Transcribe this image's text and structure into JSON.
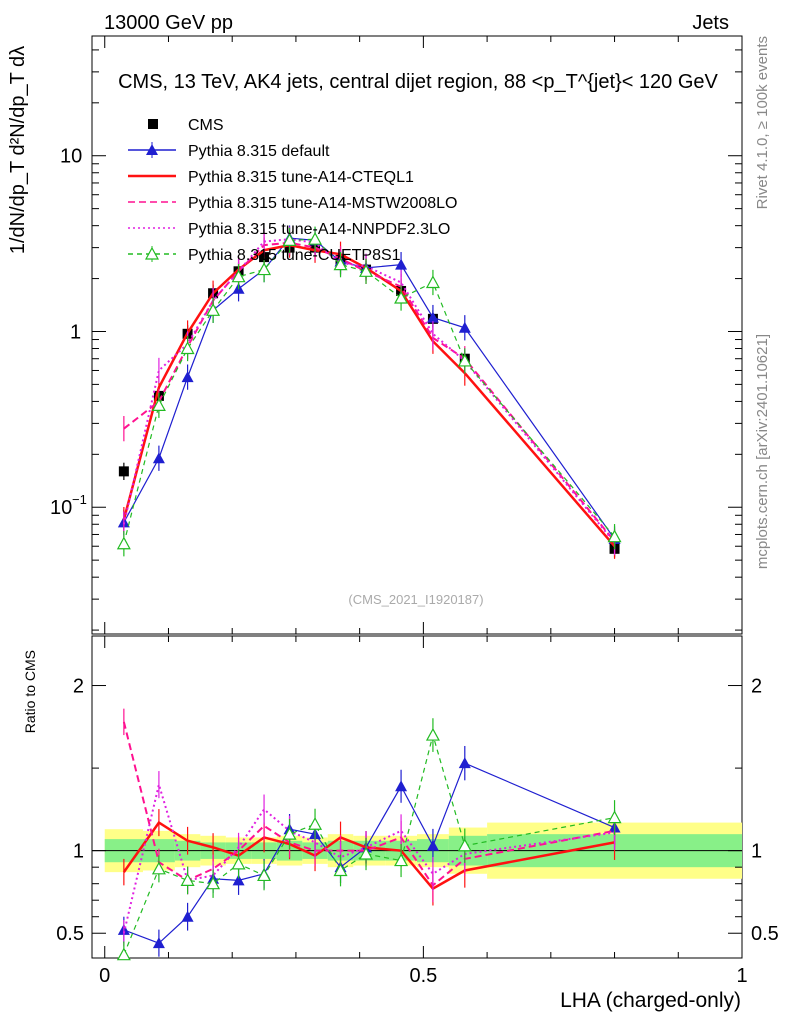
{
  "header": {
    "left": "13000 GeV pp",
    "right": "Jets"
  },
  "side_labels": {
    "rivet": "Rivet 4.1.0, ≥ 100k events",
    "mcplots": "mcplots.cern.ch [arXiv:2401.10621]"
  },
  "chart_data": {
    "type": "line",
    "title": "CMS, 13 TeV, AK4 jets, central dijet region, 88 <p_T^{jet}< 120 GeV",
    "watermark": "(CMS_2021_I1920187)",
    "xlabel": "LHA (charged-only)",
    "ylabel": "1/dN/dp_T  d²N/dp_T dλ",
    "ratio_ylabel": "Ratio to CMS",
    "xlim": [
      -0.02,
      1.0
    ],
    "ylim_log": [
      0.019,
      48
    ],
    "ratio_ylim": [
      0.35,
      2.3
    ],
    "x_ticks": [
      "0",
      "0.5",
      "1"
    ],
    "y_ticks": [
      "10^-1",
      "1",
      "10"
    ],
    "ratio_ticks": [
      "0.5",
      "1",
      "2"
    ],
    "x": [
      0.03,
      0.085,
      0.13,
      0.17,
      0.21,
      0.25,
      0.29,
      0.33,
      0.37,
      0.41,
      0.465,
      0.515,
      0.565,
      0.8
    ],
    "series": [
      {
        "name": "CMS",
        "color": "#000000",
        "style": "data",
        "values": [
          0.16,
          0.43,
          0.97,
          1.65,
          2.2,
          2.65,
          3.0,
          3.0,
          2.55,
          2.25,
          1.7,
          1.18,
          0.7,
          0.058
        ],
        "ratio": [
          1,
          1,
          1,
          1,
          1,
          1,
          1,
          1,
          1,
          1,
          1,
          1,
          1,
          1
        ]
      },
      {
        "name": "Pythia 8.315 default",
        "color": "#1f1fd0",
        "style": "solid-tri",
        "values": [
          0.082,
          0.19,
          0.55,
          1.32,
          1.75,
          2.25,
          3.4,
          3.3,
          2.5,
          2.3,
          2.4,
          1.2,
          1.05,
          0.066
        ],
        "ratio": [
          0.52,
          0.44,
          0.6,
          0.83,
          0.82,
          0.86,
          1.13,
          1.1,
          0.9,
          1.02,
          1.39,
          1.03,
          1.53,
          1.14
        ]
      },
      {
        "name": "Pythia 8.315 tune-A14-CTEQL1",
        "color": "#ff1111",
        "style": "solid",
        "values": [
          0.085,
          0.48,
          0.98,
          1.65,
          2.25,
          2.9,
          3.1,
          2.9,
          2.75,
          2.3,
          1.7,
          0.88,
          0.58,
          0.06
        ],
        "ratio": [
          0.87,
          1.17,
          1.06,
          1.02,
          0.97,
          1.08,
          1.04,
          0.97,
          1.08,
          1.02,
          1.0,
          0.77,
          0.88,
          1.05
        ]
      },
      {
        "name": "Pythia 8.315 tune-A14-MSTW2008LO",
        "color": "#ff1190",
        "style": "dashed",
        "values": [
          0.28,
          0.4,
          0.82,
          1.5,
          2.2,
          3.1,
          3.2,
          3.0,
          2.6,
          2.2,
          1.8,
          0.92,
          0.7,
          0.064
        ],
        "ratio": [
          1.78,
          0.93,
          0.82,
          0.89,
          1.0,
          1.15,
          1.05,
          1.0,
          1.0,
          1.0,
          1.08,
          0.79,
          0.95,
          1.12
        ]
      },
      {
        "name": "Pythia 8.315 tune-A14-NNPDF2.3LO",
        "color": "#e020e0",
        "style": "dotted",
        "values": [
          0.08,
          0.6,
          0.85,
          1.5,
          2.2,
          3.25,
          3.35,
          3.2,
          2.45,
          2.35,
          1.9,
          0.97,
          0.68,
          0.063
        ],
        "ratio": [
          0.5,
          1.4,
          0.82,
          0.85,
          1.02,
          1.25,
          1.12,
          1.05,
          0.96,
          1.02,
          1.12,
          0.86,
          0.98,
          1.11
        ]
      },
      {
        "name": "Pythia 8.315 tune-CUETP8S1",
        "color": "#22bb22",
        "style": "dashed-open-tri",
        "values": [
          0.062,
          0.38,
          0.8,
          1.32,
          2.05,
          2.25,
          3.3,
          3.35,
          2.4,
          2.2,
          1.55,
          1.9,
          0.68,
          0.068
        ],
        "ratio": [
          0.37,
          0.89,
          0.82,
          0.8,
          0.92,
          0.85,
          1.1,
          1.16,
          0.88,
          0.98,
          0.94,
          1.7,
          1.03,
          1.2
        ]
      }
    ]
  }
}
